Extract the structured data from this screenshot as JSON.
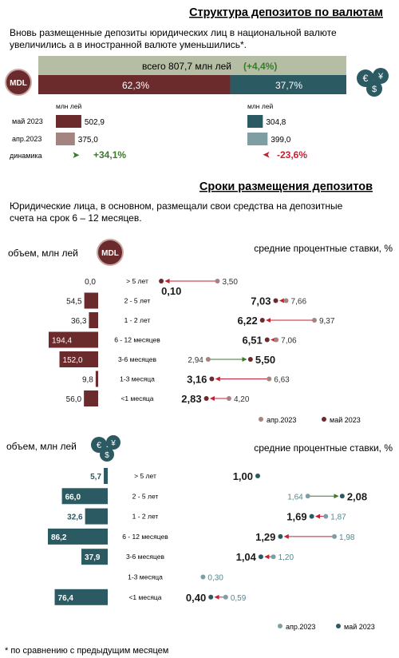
{
  "title1": "Структура депозитов по валютам",
  "intro1": [
    "Вновь размещенные депозиты юридических лиц в национальной валюте",
    "увеличились а в иностранной валюте уменьшились*."
  ],
  "total": {
    "label": "всего  807,7 млн лей",
    "change": "(+4,4%)",
    "mdl_share": "62,3%",
    "fx_share": "37,7%",
    "mdl_share_value": 62.3
  },
  "mdl_badge": "MDL",
  "fx_badge": "€ $ ¥",
  "unit_label": "млн лей",
  "mdl_block": {
    "rows": [
      {
        "label": "май 2023",
        "value": 502.9,
        "text": "502,9"
      },
      {
        "label": "апр.2023",
        "value": 375.0,
        "text": "375,0"
      }
    ],
    "dynamics_label": "динамика",
    "dynamics": "+34,1%"
  },
  "fx_block": {
    "rows": [
      {
        "label": "май 2023",
        "value": 304.8,
        "text": "304,8"
      },
      {
        "label": "апр.2023",
        "value": 399.0,
        "text": "399,0"
      }
    ],
    "dynamics": "-23,6%"
  },
  "title2": "Сроки размещения депозитов",
  "intro2": [
    "Юридические лица, в основном, размещали свои средства на депозитные",
    "счета на срок 6 – 12 месяцев."
  ],
  "volume_label": "объем, млн лей",
  "rates_label": "средние процентные ставки, %",
  "legend": {
    "prev": "апр.2023",
    "curr": "май 2023"
  },
  "colors": {
    "mdl_dark": "#6b2a2c",
    "mdl_light": "#a38480",
    "fx_dark": "#2b5a62",
    "fx_light": "#7f9ea3",
    "olive": "#b5bda4",
    "green": "#3a7a2a",
    "red": "#c42031"
  },
  "chart_data": [
    {
      "type": "bar",
      "title": "",
      "xlabel": "",
      "ylabel": "объем, млн лей",
      "categories": [
        "> 5 лет",
        "2 - 5 лет",
        "1 - 2 лет",
        "6 - 12 месяцев",
        "3-6 месяцев",
        "1-3 месяца",
        "<1 месяца"
      ],
      "values": [
        0.0,
        54.5,
        36.3,
        194.4,
        152.0,
        9.8,
        56.0
      ],
      "value_labels": [
        "0,0",
        "54,5",
        "36,3",
        "194,4",
        "152,0",
        "9,8",
        "56,0"
      ],
      "rates": {
        "type": "scatter",
        "ylabel": "средние процентные ставки, %",
        "xlim": [
          0,
          10
        ],
        "series": [
          {
            "name": "апр.2023",
            "values": [
              3.5,
              7.66,
              9.37,
              7.06,
              2.94,
              6.63,
              4.2
            ],
            "labels": [
              "3,50",
              "7,66",
              "9,37",
              "7,06",
              "2,94",
              "6,63",
              "4,20"
            ]
          },
          {
            "name": "май 2023",
            "values": [
              0.1,
              7.03,
              6.22,
              6.51,
              5.5,
              3.16,
              2.83
            ],
            "labels": [
              "0,10",
              "7,03",
              "6,22",
              "6,51",
              "5,50",
              "3,16",
              "2,83"
            ]
          }
        ]
      }
    },
    {
      "type": "bar",
      "title": "",
      "xlabel": "",
      "ylabel": "объем, млн лей",
      "categories": [
        "> 5 лет",
        "2 - 5 лет",
        "1 - 2 лет",
        "6 - 12 месяцев",
        "3-6 месяцев",
        "1-3 месяца",
        "<1 месяца"
      ],
      "values": [
        5.7,
        66.0,
        32.6,
        86.2,
        37.9,
        null,
        76.4
      ],
      "value_labels": [
        "5,7",
        "66,0",
        "32,6",
        "86,2",
        "37,9",
        "",
        "76,4"
      ],
      "rates": {
        "type": "scatter",
        "ylabel": "средние процентные ставки, %",
        "xlim": [
          0,
          2.2
        ],
        "series": [
          {
            "name": "апр.2023",
            "values": [
              null,
              1.64,
              1.87,
              1.98,
              1.2,
              0.3,
              0.59
            ],
            "labels": [
              "",
              "1,64",
              "1,87",
              "1,98",
              "1,20",
              "0,30",
              "0,59"
            ]
          },
          {
            "name": "май 2023",
            "values": [
              1.0,
              2.08,
              1.69,
              1.29,
              1.04,
              null,
              0.4
            ],
            "labels": [
              "1,00",
              "2,08",
              "1,69",
              "1,29",
              "1,04",
              "",
              "0,40"
            ]
          }
        ]
      }
    }
  ],
  "footnote": "* по сравнению с предыдущим месяцем"
}
